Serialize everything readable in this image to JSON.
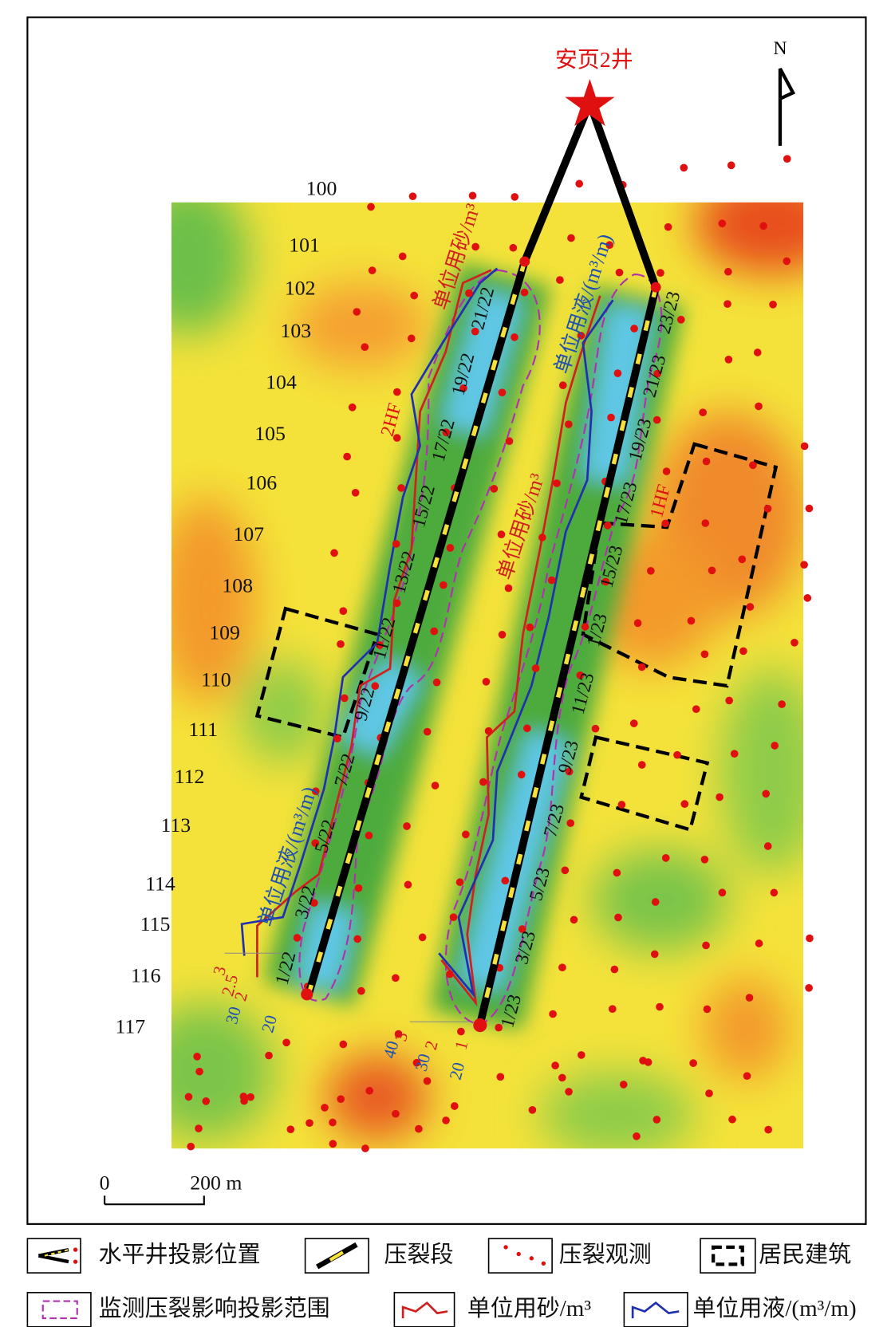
{
  "map": {
    "well_name": "安页2井",
    "north": "N",
    "lines": [
      "100",
      "101",
      "102",
      "103",
      "104",
      "105",
      "106",
      "107",
      "108",
      "109",
      "110",
      "111",
      "112",
      "113",
      "114",
      "115",
      "116",
      "117"
    ],
    "wells": [
      {
        "name": "2HF",
        "stages": [
          "1/22",
          "3/22",
          "5/22",
          "7/22",
          "9/22",
          "11/22",
          "13/22",
          "15/22",
          "17/22",
          "19/22",
          "21/22"
        ],
        "sand_label": "单位用砂/m³",
        "fluid_label": "单位用液/(m³/m)",
        "sand_scale": [
          "3",
          "2.5",
          "2"
        ],
        "fluid_scale": [
          "30",
          "20"
        ]
      },
      {
        "name": "1HF",
        "stages": [
          "1/23",
          "3/23",
          "5/23",
          "7/23",
          "9/23",
          "11/23",
          "1/23",
          "15/23",
          "17/23",
          "19/23",
          "21/23",
          "23/23"
        ],
        "sand_label": "单位用砂/m³",
        "fluid_label": "单位用液/(m³/m)",
        "sand_scale": [
          "3",
          "2",
          "1"
        ],
        "fluid_scale": [
          "40",
          "30",
          "20"
        ]
      }
    ],
    "scale_bar": {
      "start": "0",
      "end": "200 m"
    }
  },
  "legend": [
    "水平井投影位置",
    "压裂段",
    "压裂观测",
    "居民建筑",
    "监测压裂影响投影范围",
    "单位用砂/m³",
    "单位用液/(m³/m)"
  ]
}
